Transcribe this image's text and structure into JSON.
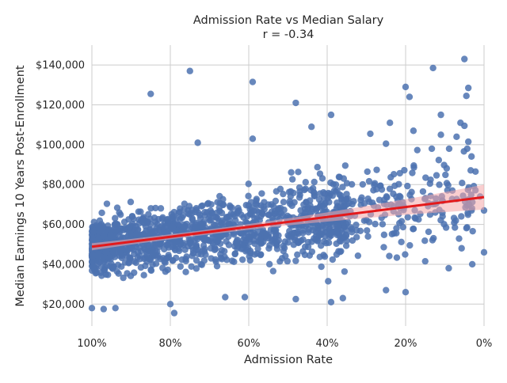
{
  "chart_data": {
    "type": "scatter",
    "title": "Admission Rate vs Median Salary",
    "subtitle": "r = -0.34",
    "xlabel": "Admission Rate",
    "ylabel": "Median Earnings 10 Years Post-Enrollment",
    "xlim": [
      1.0,
      0.0
    ],
    "ylim": [
      9000,
      150000
    ],
    "x_ticks": [
      1.0,
      0.8,
      0.6,
      0.4,
      0.2,
      0.0
    ],
    "x_tick_labels": [
      "100%",
      "80%",
      "60%",
      "40%",
      "20%",
      "0%"
    ],
    "y_ticks": [
      20000,
      40000,
      60000,
      80000,
      100000,
      120000,
      140000
    ],
    "y_tick_labels": [
      "$20,000",
      "$40,000",
      "$60,000",
      "$80,000",
      "$100,000",
      "$120,000",
      "$140,000"
    ],
    "grid": true,
    "point_color": "#4c72b0",
    "regression": {
      "color": "#e31a1c",
      "ci_color": "#f4a6a8",
      "x": [
        1.0,
        0.0
      ],
      "y": [
        48800,
        73700
      ]
    },
    "outliers": [
      {
        "x": 0.05,
        "y": 143000
      },
      {
        "x": 0.04,
        "y": 128500
      },
      {
        "x": 0.045,
        "y": 124500
      },
      {
        "x": 0.13,
        "y": 138500
      },
      {
        "x": 0.2,
        "y": 129000
      },
      {
        "x": 0.19,
        "y": 124000
      },
      {
        "x": 0.59,
        "y": 131500
      },
      {
        "x": 0.75,
        "y": 137000
      },
      {
        "x": 0.85,
        "y": 125500
      },
      {
        "x": 0.48,
        "y": 121000
      },
      {
        "x": 0.39,
        "y": 115000
      },
      {
        "x": 0.11,
        "y": 115000
      },
      {
        "x": 0.06,
        "y": 111000
      },
      {
        "x": 0.05,
        "y": 109500
      },
      {
        "x": 0.44,
        "y": 109000
      },
      {
        "x": 0.24,
        "y": 111000
      },
      {
        "x": 0.18,
        "y": 107000
      },
      {
        "x": 0.29,
        "y": 105500
      },
      {
        "x": 0.11,
        "y": 105000
      },
      {
        "x": 0.07,
        "y": 104000
      },
      {
        "x": 0.04,
        "y": 101500
      },
      {
        "x": 0.59,
        "y": 103000
      },
      {
        "x": 0.73,
        "y": 101000
      },
      {
        "x": 0.25,
        "y": 100500
      },
      {
        "x": 0.2,
        "y": 26000
      },
      {
        "x": 0.25,
        "y": 27000
      },
      {
        "x": 0.39,
        "y": 21000
      },
      {
        "x": 0.48,
        "y": 22500
      },
      {
        "x": 0.79,
        "y": 15500
      },
      {
        "x": 0.8,
        "y": 20000
      },
      {
        "x": 0.97,
        "y": 17500
      },
      {
        "x": 0.94,
        "y": 18000
      },
      {
        "x": 1.0,
        "y": 18000
      },
      {
        "x": 0.0,
        "y": 46000
      },
      {
        "x": 0.03,
        "y": 40000
      },
      {
        "x": 0.09,
        "y": 38000
      },
      {
        "x": 0.15,
        "y": 41500
      },
      {
        "x": 0.0,
        "y": 67000
      },
      {
        "x": 0.01,
        "y": 74000
      },
      {
        "x": 0.66,
        "y": 23500
      },
      {
        "x": 0.61,
        "y": 23500
      },
      {
        "x": 0.36,
        "y": 23000
      }
    ]
  }
}
